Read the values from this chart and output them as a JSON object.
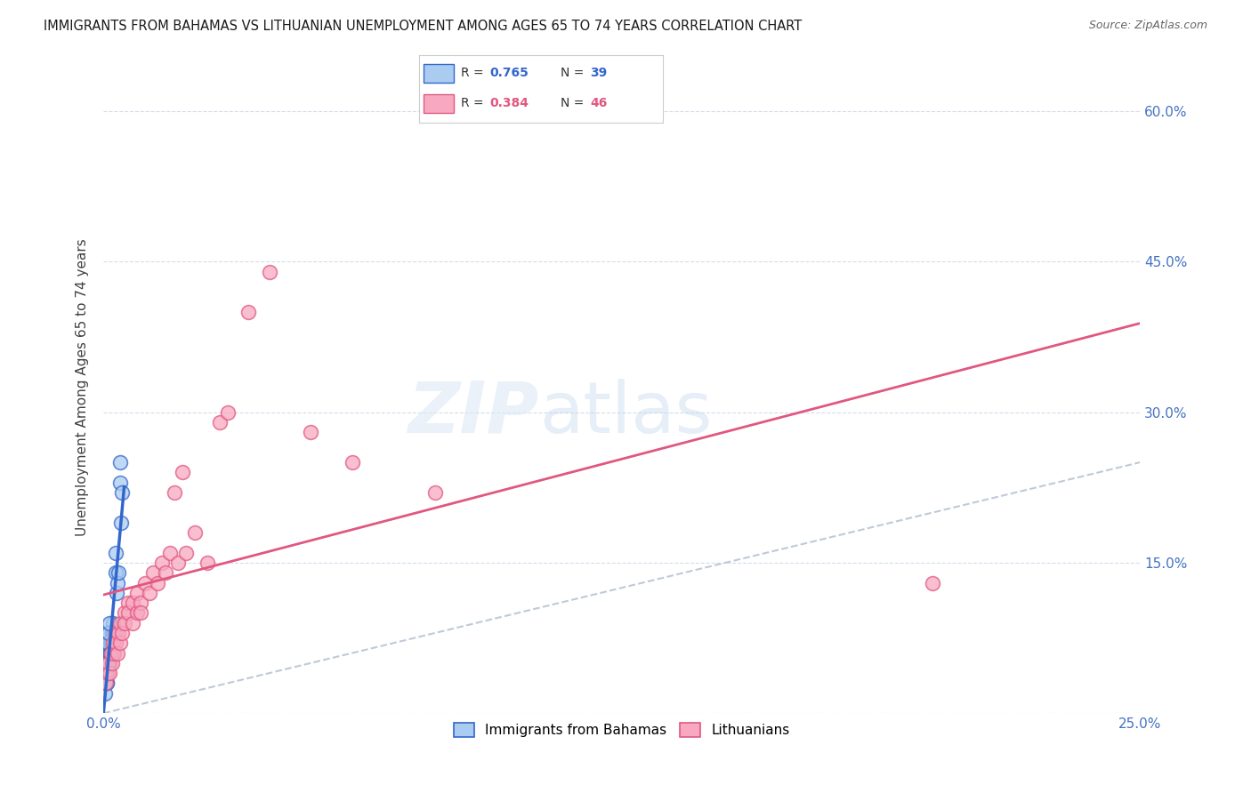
{
  "title": "IMMIGRANTS FROM BAHAMAS VS LITHUANIAN UNEMPLOYMENT AMONG AGES 65 TO 74 YEARS CORRELATION CHART",
  "source": "Source: ZipAtlas.com",
  "ylabel": "Unemployment Among Ages 65 to 74 years",
  "xlim": [
    0.0,
    0.25
  ],
  "ylim": [
    0.0,
    0.65
  ],
  "x_ticks": [
    0.0,
    0.05,
    0.1,
    0.15,
    0.2,
    0.25
  ],
  "y_ticks": [
    0.0,
    0.15,
    0.3,
    0.45,
    0.6
  ],
  "color_blue": "#aaccf0",
  "color_pink": "#f8a8c0",
  "color_blue_line": "#3366cc",
  "color_pink_line": "#e05880",
  "color_diagonal": "#b8c4d4",
  "legend_r1_val": "0.765",
  "legend_n1_val": "39",
  "legend_r2_val": "0.384",
  "legend_n2_val": "46",
  "bah_x": [
    0.0005,
    0.0008,
    0.001,
    0.001,
    0.0012,
    0.0013,
    0.0015,
    0.0015,
    0.0016,
    0.0017,
    0.0018,
    0.0019,
    0.002,
    0.002,
    0.0021,
    0.0022,
    0.0022,
    0.0023,
    0.0024,
    0.0025,
    0.003,
    0.003,
    0.0032,
    0.0033,
    0.0035,
    0.004,
    0.004,
    0.0042,
    0.0045,
    0.0003,
    0.0004,
    0.0005,
    0.0006,
    0.0007,
    0.0009,
    0.001,
    0.0012,
    0.0014,
    0.0016
  ],
  "bah_y": [
    0.04,
    0.03,
    0.06,
    0.08,
    0.05,
    0.07,
    0.05,
    0.06,
    0.07,
    0.06,
    0.06,
    0.07,
    0.06,
    0.08,
    0.07,
    0.08,
    0.09,
    0.07,
    0.06,
    0.08,
    0.14,
    0.16,
    0.12,
    0.13,
    0.14,
    0.23,
    0.25,
    0.19,
    0.22,
    0.02,
    0.03,
    0.03,
    0.04,
    0.03,
    0.05,
    0.07,
    0.08,
    0.09,
    0.06
  ],
  "lit_x": [
    0.0005,
    0.001,
    0.0012,
    0.0015,
    0.0018,
    0.002,
    0.0022,
    0.0025,
    0.003,
    0.003,
    0.0033,
    0.0035,
    0.004,
    0.004,
    0.0045,
    0.005,
    0.005,
    0.006,
    0.006,
    0.007,
    0.007,
    0.008,
    0.008,
    0.009,
    0.009,
    0.01,
    0.011,
    0.012,
    0.013,
    0.014,
    0.015,
    0.016,
    0.017,
    0.018,
    0.019,
    0.02,
    0.022,
    0.025,
    0.028,
    0.03,
    0.035,
    0.04,
    0.05,
    0.06,
    0.08,
    0.2
  ],
  "lit_y": [
    0.03,
    0.04,
    0.05,
    0.04,
    0.06,
    0.05,
    0.07,
    0.06,
    0.08,
    0.07,
    0.06,
    0.08,
    0.07,
    0.09,
    0.08,
    0.1,
    0.09,
    0.11,
    0.1,
    0.09,
    0.11,
    0.1,
    0.12,
    0.11,
    0.1,
    0.13,
    0.12,
    0.14,
    0.13,
    0.15,
    0.14,
    0.16,
    0.22,
    0.15,
    0.24,
    0.16,
    0.18,
    0.15,
    0.29,
    0.3,
    0.4,
    0.44,
    0.28,
    0.25,
    0.22,
    0.13
  ]
}
